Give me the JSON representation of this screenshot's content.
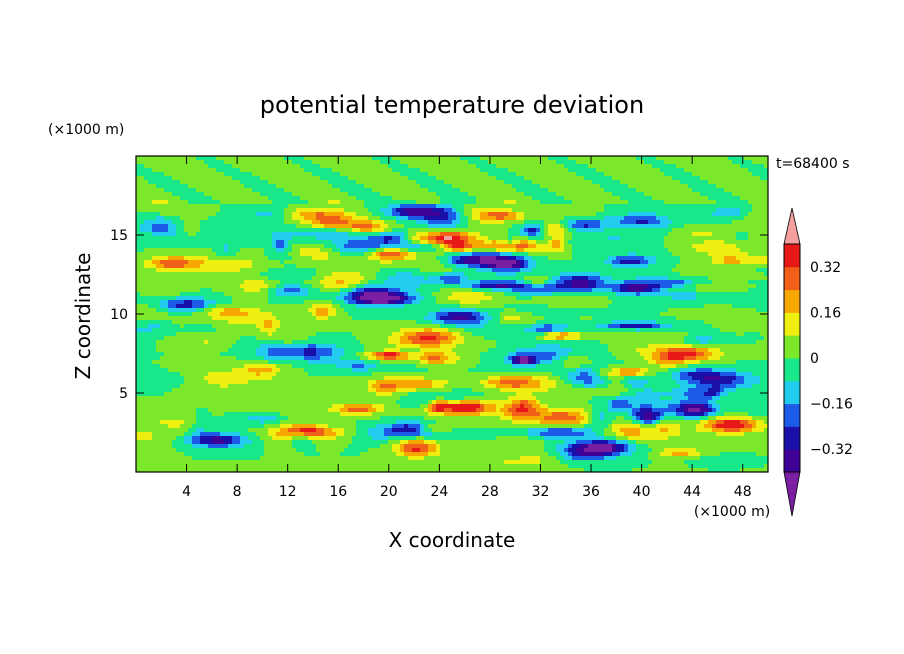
{
  "chart_data": {
    "type": "heatmap",
    "title": "potential temperature deviation",
    "xlabel": "X coordinate",
    "ylabel": "Z coordinate",
    "x_unit": "(×1000 m)",
    "y_unit": "(×1000 m)",
    "time_label": "t=68400 s",
    "xlim": [
      0,
      50
    ],
    "ylim": [
      0,
      20
    ],
    "x_ticks": [
      4,
      8,
      12,
      16,
      20,
      24,
      28,
      32,
      36,
      40,
      44,
      48
    ],
    "y_ticks": [
      5,
      10,
      15
    ],
    "x_tick_labels": [
      "4",
      "8",
      "12",
      "16",
      "20",
      "24",
      "28",
      "32",
      "36",
      "40",
      "44",
      "48"
    ],
    "y_tick_labels": [
      "5",
      "10",
      "15"
    ],
    "colorbar": {
      "levels": [
        -0.4,
        -0.32,
        -0.24,
        -0.16,
        -0.08,
        0,
        0.08,
        0.16,
        0.24,
        0.32,
        0.4
      ],
      "tick_values": [
        0.32,
        0.16,
        0,
        -0.16,
        -0.32
      ],
      "tick_labels": [
        "0.32",
        "0.16",
        "0",
        "−0.16",
        "−0.32"
      ],
      "colors": [
        "#7b1fa2",
        "#3f0096",
        "#1a0fa8",
        "#1e5ae8",
        "#22ccee",
        "#19e88a",
        "#7be82a",
        "#eeee10",
        "#f5a800",
        "#f06018",
        "#e81818",
        "#f5a0a0"
      ],
      "extend": "both"
    },
    "field_features": [
      {
        "x": 22,
        "z": 16.5,
        "value": -0.35
      },
      {
        "x": 24.5,
        "z": 14.8,
        "value": 0.45
      },
      {
        "x": 30,
        "z": 14.3,
        "value": 0.3
      },
      {
        "x": 27,
        "z": 13.5,
        "value": -0.35
      },
      {
        "x": 35,
        "z": 15.7,
        "value": -0.3
      },
      {
        "x": 4,
        "z": 10.6,
        "value": -0.3
      },
      {
        "x": 25.5,
        "z": 9.8,
        "value": -0.35
      },
      {
        "x": 32,
        "z": 9.5,
        "value": 0.3
      },
      {
        "x": 23,
        "z": 7.2,
        "value": 0.3
      },
      {
        "x": 29.5,
        "z": 5.7,
        "value": 0.3
      },
      {
        "x": 26,
        "z": 4.1,
        "value": 0.45
      },
      {
        "x": 22,
        "z": 2.7,
        "value": -0.35
      },
      {
        "x": 47,
        "z": 3.0,
        "value": 0.4
      },
      {
        "x": 14,
        "z": 2.5,
        "value": 0.3
      },
      {
        "x": 6.5,
        "z": 2.0,
        "value": -0.3
      },
      {
        "x": 44,
        "z": 4.0,
        "value": -0.3
      },
      {
        "x": 44,
        "z": 7.5,
        "value": 0.3
      },
      {
        "x": 12,
        "z": 11.5,
        "value": -0.2
      },
      {
        "x": 3,
        "z": 13.2,
        "value": 0.3
      },
      {
        "x": 40,
        "z": 15.9,
        "value": -0.25
      }
    ]
  }
}
